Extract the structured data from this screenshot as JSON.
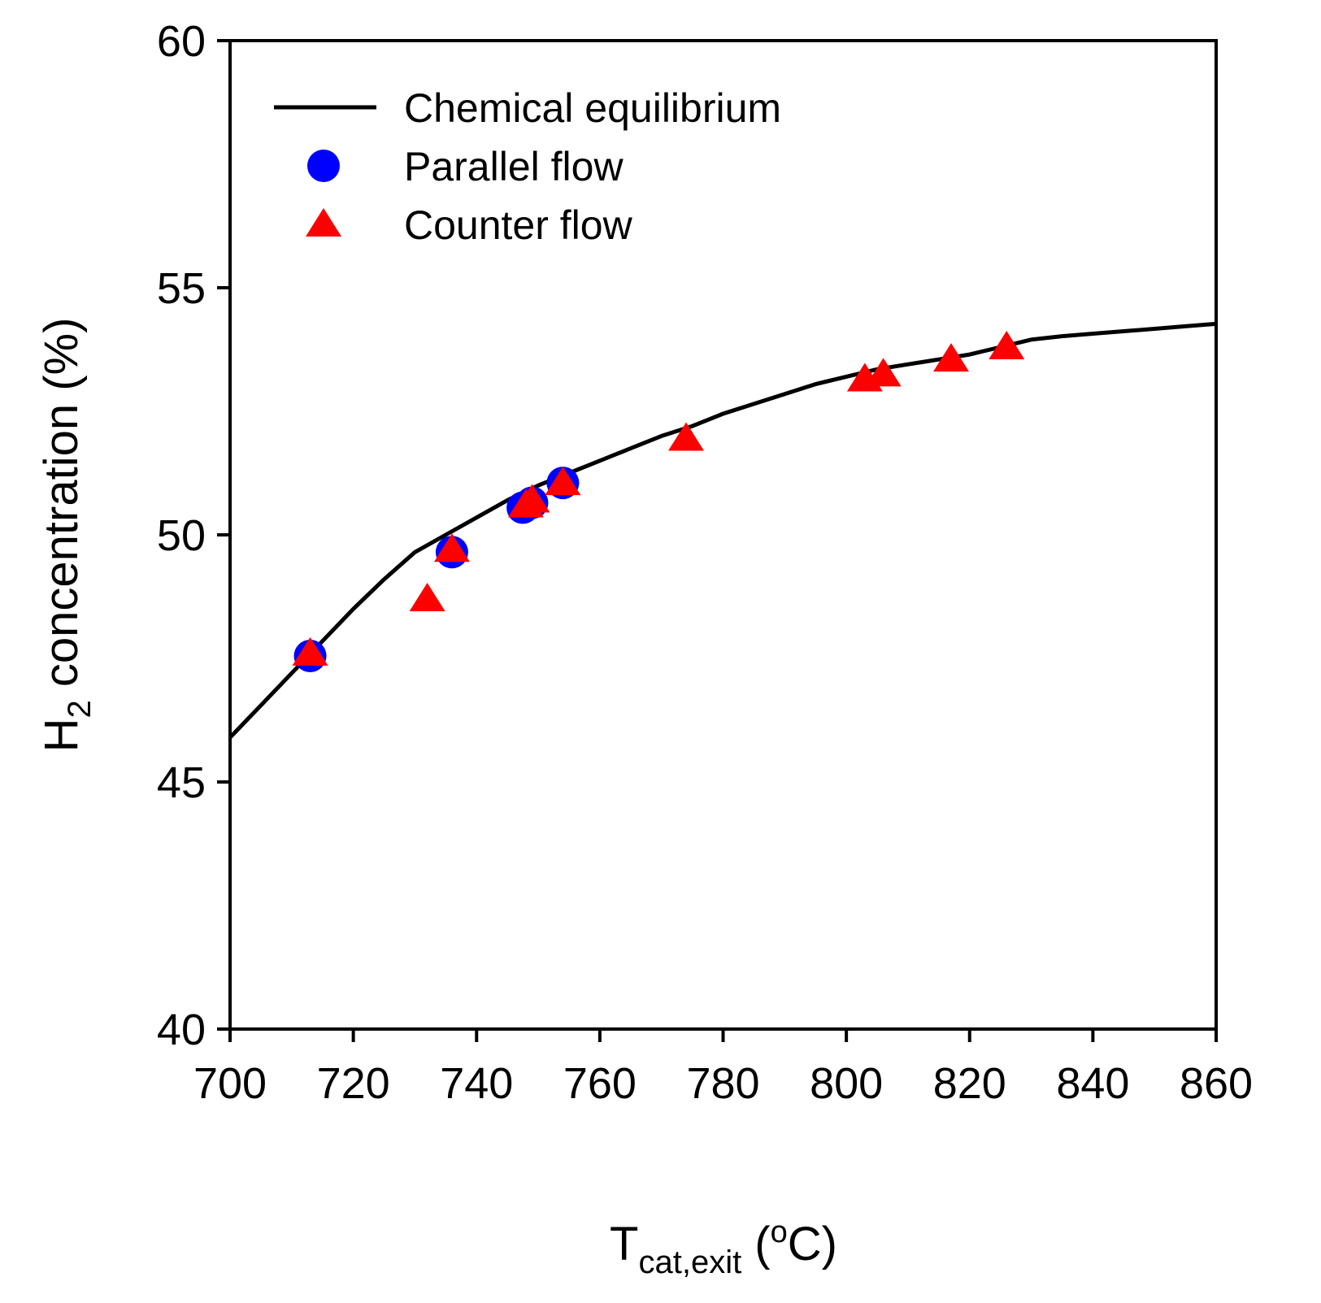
{
  "chart_data": {
    "type": "scatter",
    "title": "",
    "xlabel": {
      "main": "T",
      "sub": "cat,exit",
      "unit_open": " (",
      "unit_sup": "o",
      "unit_close": "C)"
    },
    "ylabel": {
      "main": "H",
      "sub": "2",
      "rest": " concentration (%)"
    },
    "xlim": [
      700,
      860
    ],
    "ylim": [
      40,
      60
    ],
    "xticks": [
      700,
      720,
      740,
      760,
      780,
      800,
      820,
      840,
      860
    ],
    "yticks": [
      40,
      45,
      50,
      55,
      60
    ],
    "legend_position": "top-left",
    "series": [
      {
        "name": "Chemical equilibrium",
        "kind": "line",
        "color": "#000000",
        "x": [
          700,
          705,
          710,
          715,
          720,
          725,
          730,
          735,
          740,
          745,
          750,
          755,
          760,
          765,
          770,
          775,
          780,
          785,
          790,
          795,
          800,
          805,
          810,
          815,
          820,
          825,
          830,
          835,
          840,
          845,
          850,
          855,
          860
        ],
        "y": [
          45.9,
          46.55,
          47.2,
          47.85,
          48.5,
          49.1,
          49.65,
          50.0,
          50.35,
          50.7,
          51.0,
          51.25,
          51.5,
          51.75,
          52.0,
          52.2,
          52.45,
          52.65,
          52.85,
          53.05,
          53.2,
          53.35,
          53.45,
          53.55,
          53.65,
          53.8,
          53.95,
          54.02,
          54.07,
          54.12,
          54.17,
          54.22,
          54.27
        ]
      },
      {
        "name": "Parallel flow",
        "kind": "circle",
        "color": "#0000ff",
        "x": [
          713,
          736,
          747.5,
          749,
          754
        ],
        "y": [
          47.55,
          49.65,
          50.55,
          50.65,
          51.05
        ]
      },
      {
        "name": "Counter flow",
        "kind": "triangle",
        "color": "#ff0000",
        "x": [
          713,
          732,
          736,
          748,
          749,
          754,
          774,
          803,
          806,
          817,
          826
        ],
        "y": [
          47.6,
          48.7,
          49.7,
          50.6,
          50.7,
          51.05,
          51.95,
          53.15,
          53.25,
          53.55,
          53.8
        ]
      }
    ]
  }
}
